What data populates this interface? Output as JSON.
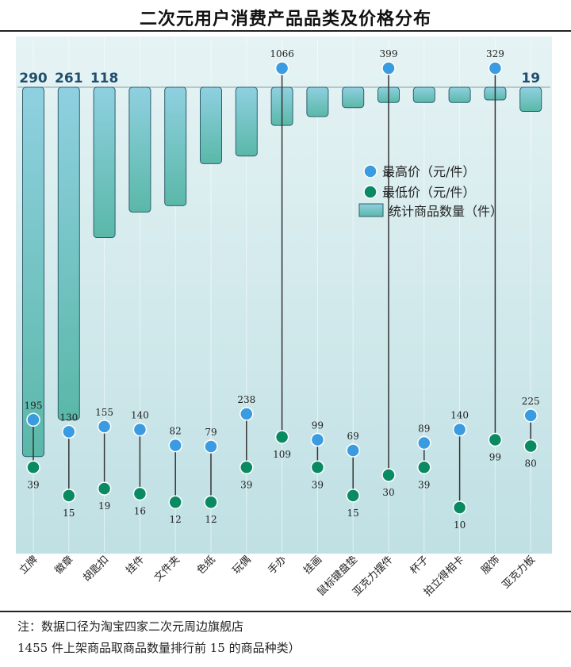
{
  "title": "二次元用户消费产品品类及价格分布",
  "legend": {
    "max_label": "最高价（元/件）",
    "min_label": "最低价（元/件）",
    "count_label": "统计商品数量（件）"
  },
  "colors": {
    "max": "#3a9be0",
    "min": "#0a8a62",
    "bar_top": "#8fd0e0",
    "bar_bottom": "#5ab8a8",
    "bar_stroke": "#2d5f6e",
    "count_label": "#1f4e6e"
  },
  "notes": {
    "line1": "注：数据口径为淘宝四家二次元周边旗舰店",
    "line2": "1455 件上架商品取商品数量排行前 15 的商品种类）"
  },
  "chart_data": {
    "type": "bar",
    "title": "二次元用户消费产品品类及价格分布",
    "legend_position": "center-right",
    "categories": [
      "立牌",
      "徽章",
      "胡匙扣",
      "挂件",
      "文件夹",
      "色纸",
      "玩偶",
      "手办",
      "挂画",
      "鼠标键盘垫",
      "亚克力摆件",
      "杯子",
      "拍立得相卡",
      "服饰",
      "亚克力板"
    ],
    "series": [
      {
        "name": "统计商品数量（件）",
        "type": "bar",
        "values": [
          290,
          261,
          118,
          98,
          93,
          60,
          54,
          30,
          23,
          16,
          12,
          12,
          12,
          10,
          19
        ]
      },
      {
        "name": "最高价（元/件）",
        "type": "scatter",
        "values": [
          195,
          130,
          155,
          140,
          82,
          79,
          238,
          1066,
          99,
          69,
          399,
          89,
          140,
          329,
          225
        ]
      },
      {
        "name": "最低价（元/件）",
        "type": "scatter",
        "values": [
          39,
          15,
          19,
          16,
          12,
          12,
          39,
          109,
          39,
          15,
          30,
          39,
          10,
          99,
          80
        ]
      }
    ],
    "count_labels_shown": [
      "290",
      "261",
      "118",
      "",
      "",
      "",
      "",
      "",
      "",
      "",
      "",
      "",
      "",
      "",
      "19"
    ],
    "price_labels_shown": {
      "max": [
        "195",
        "130",
        "155",
        "140",
        "82",
        "79",
        "238",
        "1066",
        "99",
        "69",
        "399",
        "89",
        "140",
        "329",
        "225"
      ],
      "min": [
        "39",
        "15",
        "19",
        "16",
        "12",
        "12",
        "39",
        "109",
        "39",
        "15",
        "30",
        "39",
        "10",
        "99",
        "80"
      ]
    }
  }
}
